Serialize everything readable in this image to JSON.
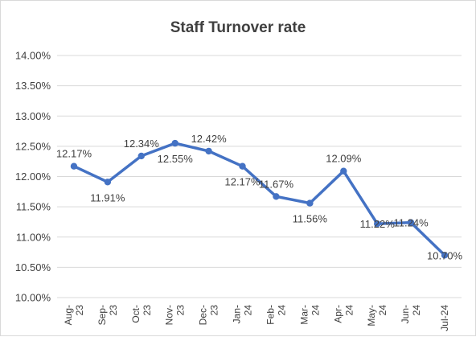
{
  "chart_data": {
    "type": "line",
    "title": "Staff Turnover rate",
    "xlabel": "",
    "ylabel": "",
    "categories": [
      [
        "Aug-",
        "23"
      ],
      [
        "Sep-",
        "23"
      ],
      [
        "Oct-",
        "23"
      ],
      [
        "Nov-",
        "23"
      ],
      [
        "Dec-",
        "23"
      ],
      [
        "Jan-",
        "24"
      ],
      [
        "Feb-",
        "24"
      ],
      [
        "Mar-",
        "24"
      ],
      [
        "Apr-",
        "24"
      ],
      [
        "May-",
        "24"
      ],
      [
        "Jun-",
        "24"
      ],
      [
        "Jul-24"
      ]
    ],
    "series": [
      {
        "values": [
          12.17,
          11.91,
          12.34,
          12.55,
          12.42,
          12.17,
          11.67,
          11.56,
          12.09,
          11.22,
          11.24,
          10.7
        ],
        "labels": [
          "12.17%",
          "11.91%",
          "12.34%",
          "12.55%",
          "12.42%",
          "12.17%",
          "11.67%",
          "11.56%",
          "12.09%",
          "11.22%",
          "11.24%",
          "10.70%"
        ],
        "color": "#4472c4"
      }
    ],
    "y_ticks": [
      "10.00%",
      "10.50%",
      "11.00%",
      "11.50%",
      "12.00%",
      "12.50%",
      "13.00%",
      "13.50%",
      "14.00%"
    ],
    "ylim": [
      10.0,
      14.0
    ],
    "grid": true,
    "legend": "none"
  }
}
